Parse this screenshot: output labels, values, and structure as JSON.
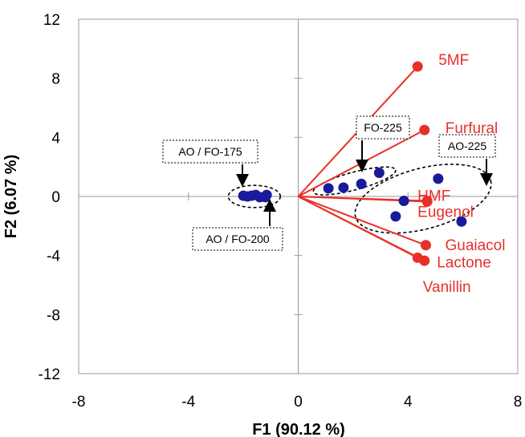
{
  "chart_data": {
    "type": "scatter",
    "xlabel": "F1 (90.12 %)",
    "ylabel": "F2 (6.07 %)",
    "xlim": [
      -8,
      8
    ],
    "ylim": [
      -12,
      12
    ],
    "xticks": [
      "-8",
      "-4",
      "0",
      "4",
      "8"
    ],
    "yticks": [
      "12",
      "8",
      "4",
      "0",
      "-4",
      "-8",
      "-12"
    ],
    "grid": false,
    "colors": {
      "observations": "#1a1a9c",
      "variables": "#e8302a",
      "axes": "#999999"
    },
    "observations": [
      {
        "x": -2.0,
        "y": 0.05
      },
      {
        "x": -1.85,
        "y": 0.0
      },
      {
        "x": -1.7,
        "y": 0.05
      },
      {
        "x": -1.55,
        "y": 0.1
      },
      {
        "x": -1.4,
        "y": -0.05
      },
      {
        "x": -1.2,
        "y": -0.05
      },
      {
        "x": -1.15,
        "y": 0.1
      },
      {
        "x": 1.1,
        "y": 0.55
      },
      {
        "x": 1.65,
        "y": 0.6
      },
      {
        "x": 2.3,
        "y": 0.85
      },
      {
        "x": 2.95,
        "y": 1.6
      },
      {
        "x": 3.55,
        "y": -1.35
      },
      {
        "x": 3.85,
        "y": -0.3
      },
      {
        "x": 5.1,
        "y": 1.2
      },
      {
        "x": 5.95,
        "y": -1.7
      }
    ],
    "variables": [
      {
        "name": "5MF",
        "x": 4.35,
        "y": 8.8
      },
      {
        "name": "Furfural",
        "x": 4.6,
        "y": 4.5
      },
      {
        "name": "HMF",
        "x": 4.7,
        "y": -0.3
      },
      {
        "name": "Eugenol",
        "x": 4.7,
        "y": -0.35
      },
      {
        "name": "Guaiacol",
        "x": 4.65,
        "y": -3.3
      },
      {
        "name": "Lactone",
        "x": 4.35,
        "y": -4.15
      },
      {
        "name": "Vanillin",
        "x": 4.6,
        "y": -4.35
      }
    ],
    "groups": [
      {
        "label": "AO / FO-175",
        "cx": -1.6,
        "cy": 0.0,
        "rx": 0.95,
        "ry": 0.75
      },
      {
        "label": "AO / FO-200"
      },
      {
        "label": "FO-225",
        "cx": 2.05,
        "cy": 1.05,
        "rx": 1.55,
        "ry": 0.6,
        "rot": -15
      },
      {
        "label": "AO-225",
        "cx": 4.55,
        "cy": -0.15,
        "rx": 2.55,
        "ry": 2.05,
        "rot": -15
      }
    ]
  }
}
